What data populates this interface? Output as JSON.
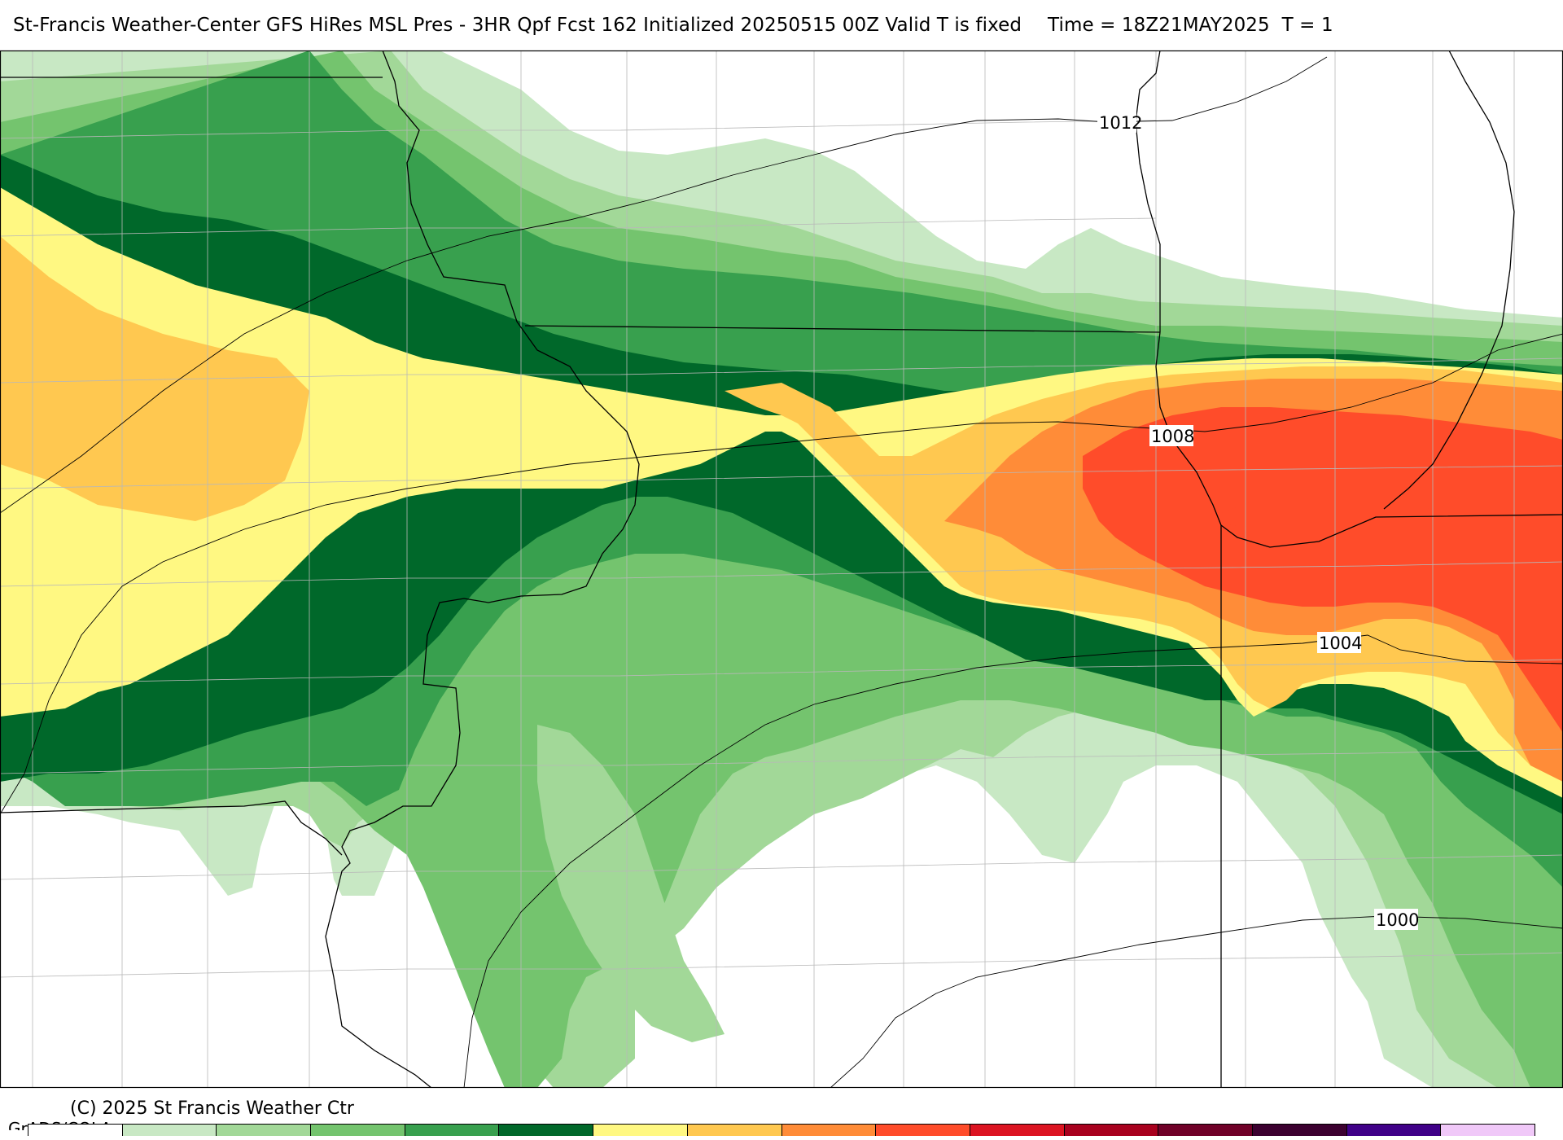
{
  "header": {
    "title": "St-Francis Weather-Center GFS HiRes MSL Pres - 3HR Qpf Fcst 162 Initialized 20250515 00Z Valid T is fixed",
    "time": "Time = 18Z21MAY2025  T = 1"
  },
  "isobars": [
    {
      "label": "1012"
    },
    {
      "label": "1008"
    },
    {
      "label": "1004"
    },
    {
      "label": "1000"
    }
  ],
  "footer": {
    "copyright": "(C) 2025 St Francis Weather Ctr",
    "software": "GrADS/COLA"
  },
  "legend": {
    "colors": [
      "#ffffff",
      "#c8e8c4",
      "#a2d898",
      "#74c46e",
      "#38a04e",
      "#00682a",
      "#fff882",
      "#ffc850",
      "#ff8c38",
      "#ff4c2a",
      "#dc1422",
      "#a8001e",
      "#700028",
      "#3c0030",
      "#400088",
      "#f0c8f8"
    ]
  },
  "colors": {
    "qpf_1": "#c8e8c4",
    "qpf_2": "#a2d898",
    "qpf_3": "#74c46e",
    "qpf_4": "#38a04e",
    "qpf_5": "#00682a",
    "qpf_6": "#fff882",
    "qpf_7": "#ffc850",
    "qpf_8": "#ff8c38",
    "qpf_9": "#ff4c2a"
  }
}
